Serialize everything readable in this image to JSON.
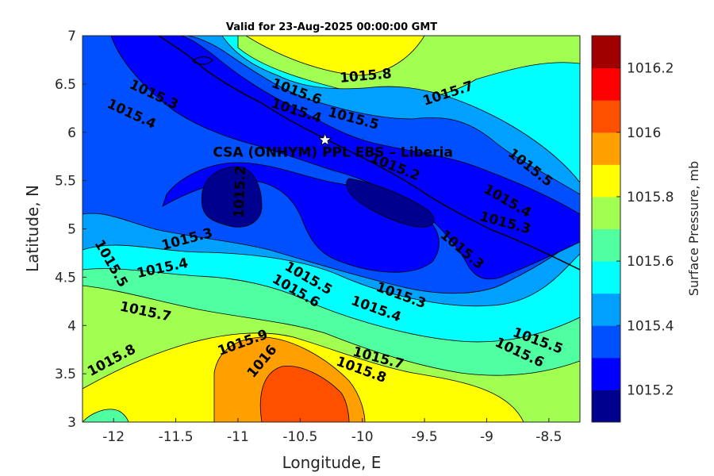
{
  "title": "Valid for 23-Aug-2025 00:00:00 GMT",
  "site_label": "CSA (ONHYM) PPL EBS  – Liberia",
  "icons": {
    "site_marker": "star-icon"
  },
  "colorbar_colors": [
    "#00008f",
    "#0000ff",
    "#0050ff",
    "#00a0ff",
    "#00ffff",
    "#50ffa0",
    "#a0ff50",
    "#ffff00",
    "#ffa000",
    "#ff5000",
    "#ff0000",
    "#a00000"
  ],
  "chart_data": {
    "type": "contour-map",
    "xlabel": "Longitude, E",
    "ylabel": "Latitude, N",
    "xlim": [
      -12.25,
      -8.25
    ],
    "ylim": [
      3,
      7
    ],
    "xticks": [
      -12,
      -11.5,
      -11,
      -10.5,
      -10,
      -9.5,
      -9,
      -8.5
    ],
    "yticks": [
      3,
      3.5,
      4,
      4.5,
      5,
      5.5,
      6,
      6.5,
      7
    ],
    "site": {
      "lon": -10.3,
      "lat": 5.92
    },
    "colorbar": {
      "label": "Surface Pressure, mb",
      "range": [
        1015.1,
        1016.3
      ],
      "ticks": [
        1015.2,
        1015.4,
        1015.6,
        1015.8,
        1016,
        1016.2
      ]
    },
    "contour_labels": [
      {
        "text": "1015.8",
        "lon": -9.97,
        "lat": 6.54
      },
      {
        "text": "1015.7",
        "lon": -9.3,
        "lat": 6.36
      },
      {
        "text": "1015.6",
        "lon": -10.54,
        "lat": 6.38
      },
      {
        "text": "1015.5",
        "lon": -10.08,
        "lat": 6.1
      },
      {
        "text": "1015.4",
        "lon": -10.54,
        "lat": 6.18
      },
      {
        "text": "1015.3",
        "lon": -11.69,
        "lat": 6.35
      },
      {
        "text": "1015.4",
        "lon": -11.87,
        "lat": 6.15
      },
      {
        "text": "1015.2",
        "lon": -9.75,
        "lat": 5.6
      },
      {
        "text": "1015.5",
        "lon": -8.67,
        "lat": 5.6
      },
      {
        "text": "1015.4",
        "lon": -8.85,
        "lat": 5.25
      },
      {
        "text": "1015.3",
        "lon": -8.86,
        "lat": 5.02
      },
      {
        "text": "1015.3",
        "lon": -9.22,
        "lat": 4.75
      },
      {
        "text": "1015.2",
        "lon": -10.95,
        "lat": 5.38
      },
      {
        "text": "1015.3",
        "lon": -11.4,
        "lat": 4.85
      },
      {
        "text": "1015.5",
        "lon": -12.05,
        "lat": 4.62
      },
      {
        "text": "1015.4",
        "lon": -11.6,
        "lat": 4.55
      },
      {
        "text": "1015.5",
        "lon": -10.45,
        "lat": 4.45
      },
      {
        "text": "1015.6",
        "lon": -10.55,
        "lat": 4.32
      },
      {
        "text": "1015.3",
        "lon": -9.7,
        "lat": 4.27
      },
      {
        "text": "1015.4",
        "lon": -9.9,
        "lat": 4.13
      },
      {
        "text": "1015.7",
        "lon": -11.75,
        "lat": 4.1
      },
      {
        "text": "1015.8",
        "lon": -12.0,
        "lat": 3.6
      },
      {
        "text": "1015.9",
        "lon": -10.95,
        "lat": 3.78
      },
      {
        "text": "1016",
        "lon": -10.78,
        "lat": 3.6
      },
      {
        "text": "1015.7",
        "lon": -9.88,
        "lat": 3.62
      },
      {
        "text": "1015.8",
        "lon": -10.02,
        "lat": 3.5
      },
      {
        "text": "1015.5",
        "lon": -8.6,
        "lat": 3.8
      },
      {
        "text": "1015.6",
        "lon": -8.75,
        "lat": 3.68
      }
    ]
  }
}
